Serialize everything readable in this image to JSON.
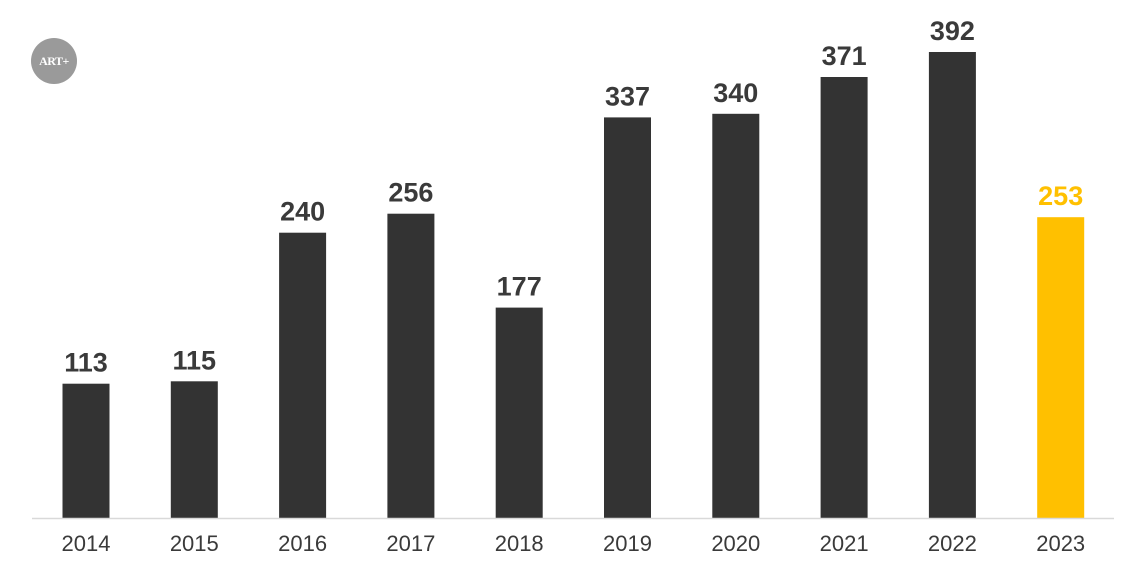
{
  "logo": {
    "text": "ART+",
    "color": "#9a9a9a"
  },
  "chart_data": {
    "type": "bar",
    "categories": [
      "2014",
      "2015",
      "2016",
      "2017",
      "2018",
      "2019",
      "2020",
      "2021",
      "2022",
      "2023"
    ],
    "values": [
      113,
      115,
      240,
      256,
      177,
      337,
      340,
      371,
      392,
      253
    ],
    "data_labels": [
      "113",
      "115",
      "240",
      "256",
      "177",
      "337",
      "340",
      "371",
      "392",
      "253"
    ],
    "highlight_index": 9,
    "colors": {
      "bar": "#333333",
      "highlight": "#FFC000",
      "label": "#3a3a3a",
      "axis": "#d9d9d9"
    },
    "ylim": [
      0,
      392
    ],
    "grid": false,
    "title": "",
    "xlabel": "",
    "ylabel": ""
  }
}
